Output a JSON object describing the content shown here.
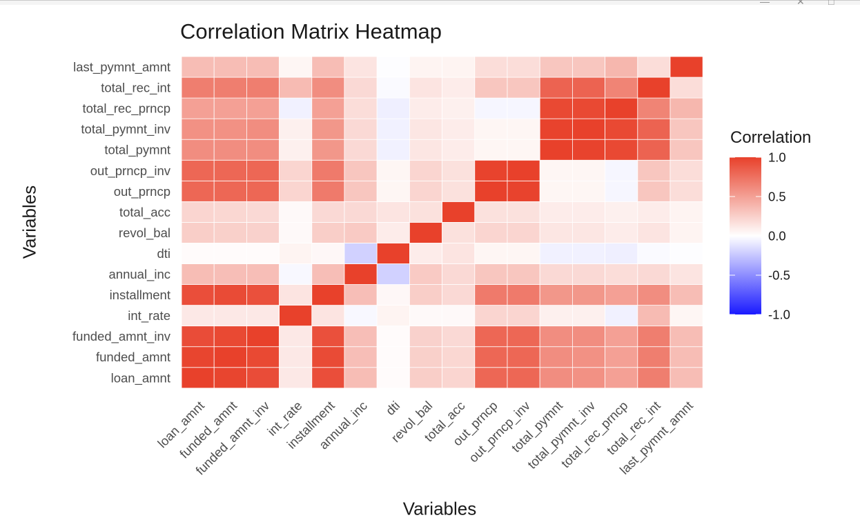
{
  "window": {
    "minimize_glyph": "—",
    "maximize_glyph": "□",
    "close_glyph": "✕"
  },
  "chart_data": {
    "type": "heatmap",
    "title": "Correlation Matrix Heatmap",
    "xlabel": "Variables",
    "ylabel": "Variables",
    "legend": {
      "title": "Correlation",
      "position": "right",
      "ticks": [
        "1.0",
        "0.5",
        "0.0",
        "-0.5",
        "-1.0"
      ],
      "tick_values": [
        1.0,
        0.5,
        0.0,
        -0.5,
        -1.0
      ],
      "range": [
        -1,
        1
      ],
      "colors": {
        "low": "#1a1aff",
        "mid": "#ffffff",
        "high": "#e8412b"
      }
    },
    "variables": [
      "loan_amnt",
      "funded_amnt",
      "funded_amnt_inv",
      "int_rate",
      "installment",
      "annual_inc",
      "dti",
      "revol_bal",
      "total_acc",
      "out_prncp",
      "out_prncp_inv",
      "total_pymnt",
      "total_pymnt_inv",
      "total_rec_prncp",
      "total_rec_int",
      "last_pymnt_amnt"
    ],
    "matrix": [
      [
        1.0,
        0.98,
        0.94,
        0.12,
        0.93,
        0.35,
        0.02,
        0.26,
        0.22,
        0.8,
        0.8,
        0.6,
        0.58,
        0.5,
        0.68,
        0.35
      ],
      [
        0.98,
        1.0,
        0.96,
        0.12,
        0.95,
        0.34,
        0.02,
        0.25,
        0.21,
        0.8,
        0.8,
        0.6,
        0.58,
        0.5,
        0.68,
        0.35
      ],
      [
        0.94,
        0.96,
        1.0,
        0.12,
        0.92,
        0.34,
        0.02,
        0.24,
        0.2,
        0.8,
        0.8,
        0.6,
        0.6,
        0.5,
        0.68,
        0.35
      ],
      [
        0.12,
        0.12,
        0.12,
        1.0,
        0.14,
        -0.03,
        0.06,
        0.03,
        0.03,
        0.22,
        0.22,
        0.08,
        0.08,
        -0.06,
        0.36,
        0.05
      ],
      [
        0.93,
        0.95,
        0.92,
        0.14,
        1.0,
        0.34,
        0.04,
        0.26,
        0.2,
        0.7,
        0.7,
        0.55,
        0.55,
        0.5,
        0.6,
        0.35
      ],
      [
        0.35,
        0.34,
        0.34,
        -0.03,
        0.34,
        1.0,
        -0.2,
        0.28,
        0.2,
        0.3,
        0.3,
        0.2,
        0.2,
        0.18,
        0.2,
        0.14
      ],
      [
        0.02,
        0.02,
        0.02,
        0.06,
        0.04,
        -0.2,
        1.0,
        0.1,
        0.14,
        0.05,
        0.05,
        -0.06,
        -0.06,
        -0.07,
        -0.02,
        -0.01
      ],
      [
        0.26,
        0.25,
        0.24,
        0.03,
        0.26,
        0.28,
        0.1,
        1.0,
        0.16,
        0.22,
        0.22,
        0.13,
        0.13,
        0.1,
        0.14,
        0.06
      ],
      [
        0.22,
        0.21,
        0.2,
        0.03,
        0.2,
        0.2,
        0.14,
        0.16,
        1.0,
        0.16,
        0.16,
        0.1,
        0.1,
        0.08,
        0.1,
        0.06
      ],
      [
        0.8,
        0.8,
        0.8,
        0.22,
        0.7,
        0.3,
        0.05,
        0.22,
        0.16,
        1.0,
        0.99,
        0.05,
        0.05,
        -0.04,
        0.3,
        0.18
      ],
      [
        0.8,
        0.8,
        0.8,
        0.22,
        0.7,
        0.3,
        0.05,
        0.22,
        0.16,
        0.99,
        1.0,
        0.05,
        0.05,
        -0.04,
        0.3,
        0.18
      ],
      [
        0.6,
        0.6,
        0.6,
        0.08,
        0.55,
        0.2,
        -0.06,
        0.13,
        0.1,
        0.05,
        0.05,
        1.0,
        0.99,
        0.96,
        0.82,
        0.3
      ],
      [
        0.58,
        0.58,
        0.6,
        0.08,
        0.55,
        0.2,
        -0.06,
        0.13,
        0.1,
        0.05,
        0.05,
        0.99,
        1.0,
        0.96,
        0.82,
        0.3
      ],
      [
        0.5,
        0.5,
        0.5,
        -0.06,
        0.5,
        0.18,
        -0.07,
        0.1,
        0.08,
        -0.04,
        -0.04,
        0.96,
        0.96,
        1.0,
        0.65,
        0.38
      ],
      [
        0.68,
        0.68,
        0.68,
        0.36,
        0.6,
        0.2,
        -0.02,
        0.14,
        0.1,
        0.3,
        0.3,
        0.82,
        0.82,
        0.65,
        1.0,
        0.18
      ],
      [
        0.35,
        0.35,
        0.35,
        0.05,
        0.35,
        0.14,
        -0.01,
        0.06,
        0.06,
        0.18,
        0.18,
        0.3,
        0.3,
        0.38,
        0.18,
        1.0
      ]
    ]
  }
}
